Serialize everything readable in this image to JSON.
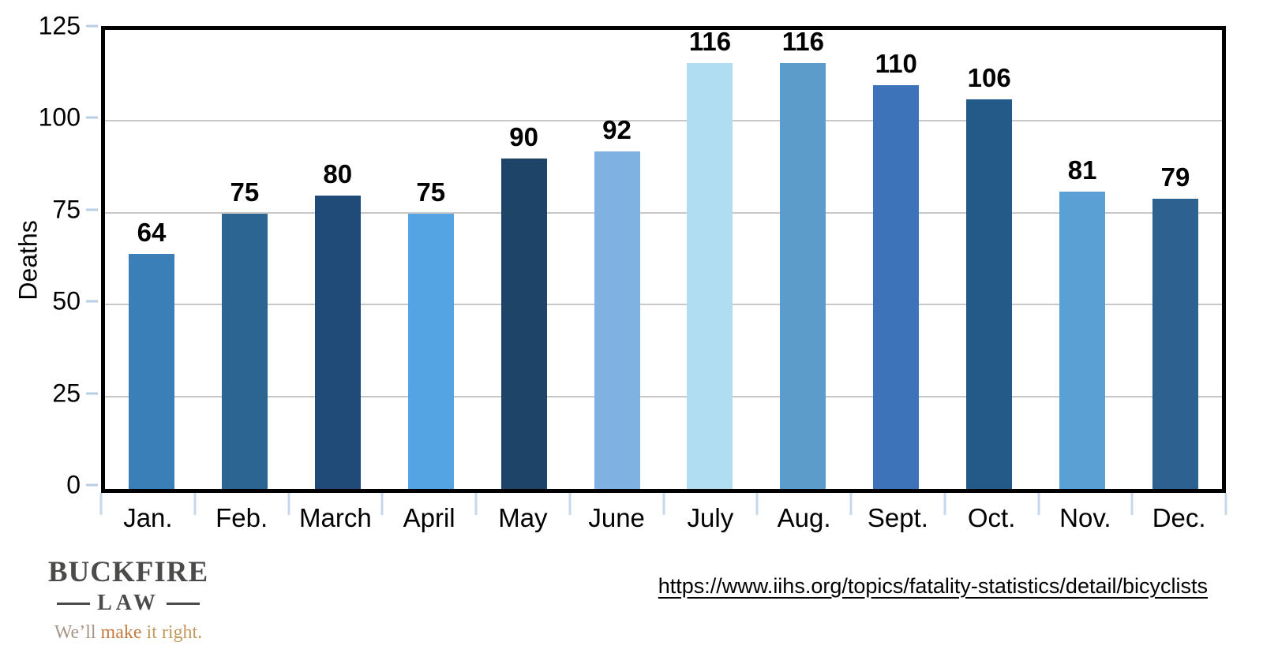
{
  "chart_data": {
    "type": "bar",
    "title": "",
    "categories": [
      "Jan.",
      "Feb.",
      "March",
      "April",
      "May",
      "June",
      "July",
      "Aug.",
      "Sept.",
      "Oct.",
      "Nov.",
      "Dec."
    ],
    "values": [
      64,
      75,
      80,
      75,
      90,
      92,
      116,
      116,
      110,
      106,
      81,
      79
    ],
    "bar_colors": [
      "#3a7fb8",
      "#2d6592",
      "#204a78",
      "#54a4e4",
      "#1e4467",
      "#7fb2e2",
      "#b0ddf2",
      "#5c9cca",
      "#3d73b8",
      "#245a88",
      "#5ba0d4",
      "#2d6290"
    ],
    "xlabel": "",
    "ylabel": "Deaths",
    "ylim": [
      0,
      125
    ],
    "yticks": [
      0,
      25,
      50,
      75,
      100,
      125
    ],
    "grid": "horizontal gridlines every 25",
    "legend_position": "none",
    "value_labels": "bold, above each bar"
  },
  "footer": {
    "logo": {
      "line1": "BUCKFIRE",
      "line2": "LAW",
      "tagline_we": "We’ll ",
      "tagline_make": "make",
      "tagline_rest": " it right."
    },
    "source_url": "https://www.iihs.org/topics/fatality-statistics/detail/bicyclists"
  },
  "colors": {
    "axis_border": "#000000",
    "gridline": "#c8c8c8",
    "y_tick": "#b9cde6",
    "x_tick": "#c7d8ea",
    "text": "#000000",
    "logo_text": "#4b4b49",
    "tagline_gray": "#a79689",
    "tagline_orange": "#c57c40",
    "tagline_tan": "#c2995c"
  }
}
